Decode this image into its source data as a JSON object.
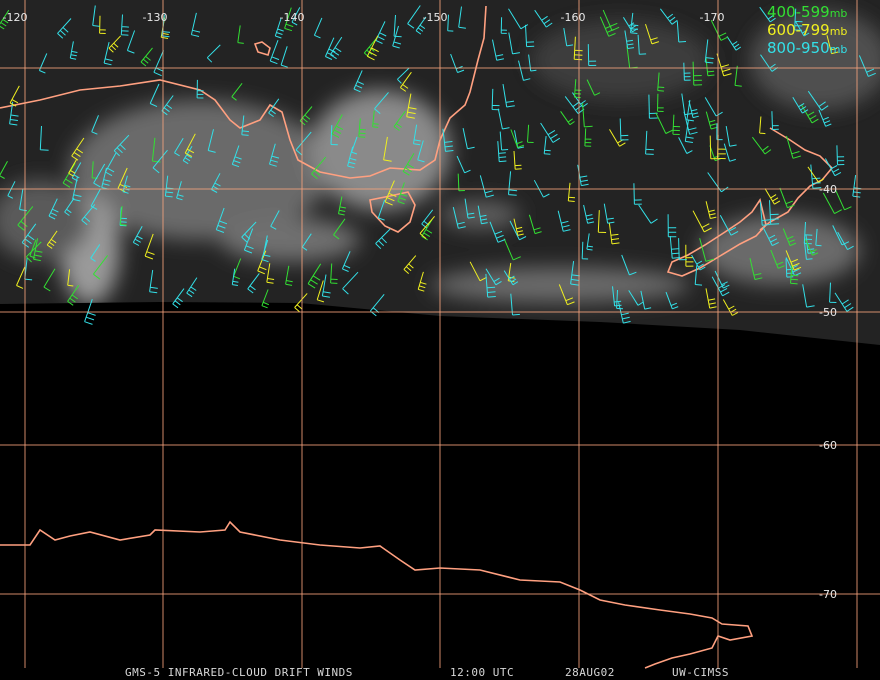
{
  "map": {
    "longitude_labels": [
      "-120",
      "-130",
      "-140",
      "-150",
      "-160",
      "-170"
    ],
    "latitude_labels": [
      "-40",
      "-50",
      "-60",
      "-70"
    ],
    "legend": [
      {
        "range": "400-599",
        "unit": "mb",
        "color": "#33e033"
      },
      {
        "range": "600-799",
        "unit": "mb",
        "color": "#f0f020"
      },
      {
        "range": "800-950",
        "unit": "mb",
        "color": "#33e0e8"
      }
    ],
    "footer": {
      "product": "GMS-5 INFRARED-CLOUD DRIFT WINDS",
      "time": "12:00 UTC",
      "date": "28AUG02",
      "source": "UW-CIMSS"
    }
  }
}
